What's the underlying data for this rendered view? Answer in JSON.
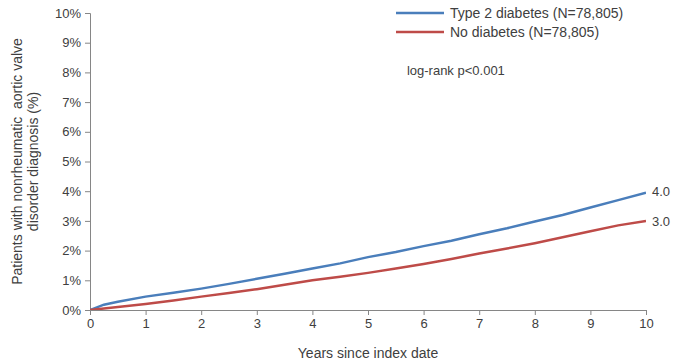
{
  "chart_data": {
    "type": "line",
    "x_label": "Years since index date",
    "y_label": [
      "Patients with nonrheumatic  aortic valve",
      "disorder diagnosis (%)"
    ],
    "x": [
      0,
      0.25,
      0.5,
      1,
      1.5,
      2,
      2.5,
      3,
      3.5,
      4,
      4.5,
      5,
      5.5,
      6,
      6.5,
      7,
      7.5,
      8,
      8.5,
      9,
      9.5,
      10
    ],
    "series": [
      {
        "name": "Type 2 diabetes (N=78,805)",
        "color": "#4a7ebb",
        "values": [
          0,
          0.18,
          0.28,
          0.45,
          0.58,
          0.72,
          0.88,
          1.05,
          1.22,
          1.4,
          1.57,
          1.78,
          1.95,
          2.15,
          2.33,
          2.55,
          2.75,
          2.98,
          3.2,
          3.45,
          3.7,
          3.95
        ]
      },
      {
        "name": "No diabetes (N=78,805)",
        "color": "#be4b48",
        "values": [
          0,
          0.05,
          0.1,
          0.2,
          0.32,
          0.45,
          0.57,
          0.7,
          0.85,
          1.0,
          1.12,
          1.25,
          1.4,
          1.55,
          1.72,
          1.9,
          2.07,
          2.25,
          2.45,
          2.65,
          2.85,
          3.0
        ]
      }
    ],
    "xlim": [
      0,
      10
    ],
    "xticks": [
      0,
      1,
      2,
      3,
      4,
      5,
      6,
      7,
      8,
      9,
      10
    ],
    "ylim": [
      0,
      10
    ],
    "yticks": [
      {
        "value": 0,
        "label": "0%"
      },
      {
        "value": 1,
        "label": "1%"
      },
      {
        "value": 2,
        "label": "2%"
      },
      {
        "value": 3,
        "label": "3%"
      },
      {
        "value": 4,
        "label": "4%"
      },
      {
        "value": 5,
        "label": "5%"
      },
      {
        "value": 6,
        "label": "6%"
      },
      {
        "value": 7,
        "label": "7%"
      },
      {
        "value": 8,
        "label": "8%"
      },
      {
        "value": 9,
        "label": "9%"
      },
      {
        "value": 10,
        "label": "10%"
      }
    ],
    "grid": false,
    "legend": "top-right",
    "annotations": [
      {
        "text": "log-rank p<0.001"
      },
      {
        "text": "4.0",
        "x": 10,
        "y": 4.0
      },
      {
        "text": "3.0",
        "x": 10,
        "y": 3.0
      }
    ]
  }
}
